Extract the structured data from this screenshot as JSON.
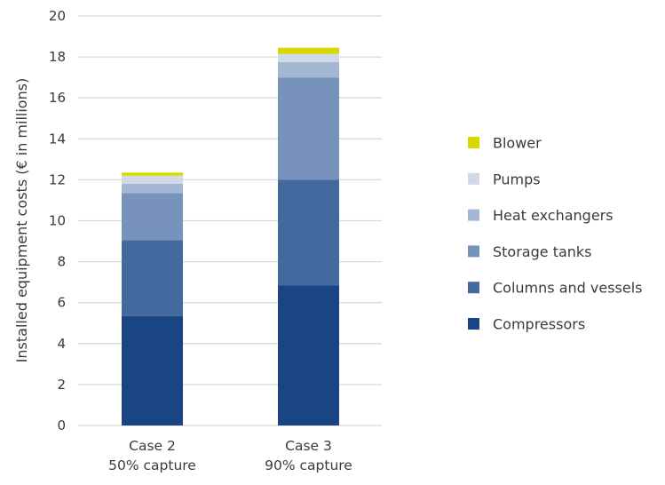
{
  "chart_data": {
    "type": "bar",
    "stacked": true,
    "title": "",
    "xlabel": "",
    "ylabel": "Installed equipment costs (€ in millions)",
    "ylim": [
      0,
      20
    ],
    "yticks": [
      0,
      2,
      4,
      6,
      8,
      10,
      12,
      14,
      16,
      18,
      20
    ],
    "grid": true,
    "legend_position": "right",
    "categories": [
      [
        "Case 2",
        "50% capture"
      ],
      [
        "Case 3",
        "90% capture"
      ]
    ],
    "series": [
      {
        "name": "Compressors",
        "color": "#1a4585",
        "values": [
          5.35,
          6.85
        ]
      },
      {
        "name": "Columns and vessels",
        "color": "#44699f",
        "values": [
          3.7,
          5.15
        ]
      },
      {
        "name": "Storage tanks",
        "color": "#7793bb",
        "values": [
          2.3,
          5.0
        ]
      },
      {
        "name": "Heat exchangers",
        "color": "#a5b8d3",
        "values": [
          0.45,
          0.75
        ]
      },
      {
        "name": "Pumps",
        "color": "#cfd9e7",
        "values": [
          0.4,
          0.4
        ]
      },
      {
        "name": "Blower",
        "color": "#d8d800",
        "values": [
          0.15,
          0.3
        ]
      }
    ]
  }
}
